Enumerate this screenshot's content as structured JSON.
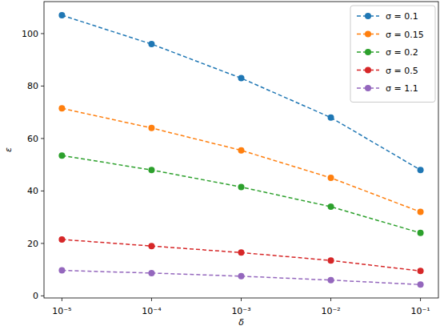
{
  "chart_data": {
    "type": "line",
    "x_label": "δ",
    "y_label": "ε",
    "x": [
      1e-05,
      0.0001,
      0.001,
      0.01,
      0.1
    ],
    "series": [
      {
        "name": "σ = 0.1",
        "color": "#1f77b4",
        "values": [
          107,
          96,
          83,
          68,
          48
        ]
      },
      {
        "name": "σ = 0.15",
        "color": "#ff7f0e",
        "values": [
          71.5,
          64,
          55.5,
          45,
          32
        ]
      },
      {
        "name": "σ = 0.2",
        "color": "#2ca02c",
        "values": [
          53.5,
          48,
          41.5,
          34,
          24
        ]
      },
      {
        "name": "σ = 0.5",
        "color": "#d62728",
        "values": [
          21.5,
          19,
          16.5,
          13.5,
          9.5
        ]
      },
      {
        "name": "σ = 1.1",
        "color": "#9467bd",
        "values": [
          9.7,
          8.7,
          7.5,
          6,
          4.3
        ]
      }
    ],
    "log": "x",
    "xlim": [
      6.31e-06,
      0.1585
    ],
    "xticks": [
      {
        "value": 1e-05,
        "label": "10⁻⁵"
      },
      {
        "value": 0.0001,
        "label": "10⁻⁴"
      },
      {
        "value": 0.001,
        "label": "10⁻³"
      },
      {
        "value": 0.01,
        "label": "10⁻²"
      },
      {
        "value": 0.1,
        "label": "10⁻¹"
      }
    ],
    "ylim": [
      -0.8,
      112.2
    ],
    "yticks": [
      0,
      20,
      40,
      60,
      80,
      100
    ],
    "grid": false,
    "legend": "upper right",
    "marker": "circle",
    "line_style": "dashed"
  }
}
